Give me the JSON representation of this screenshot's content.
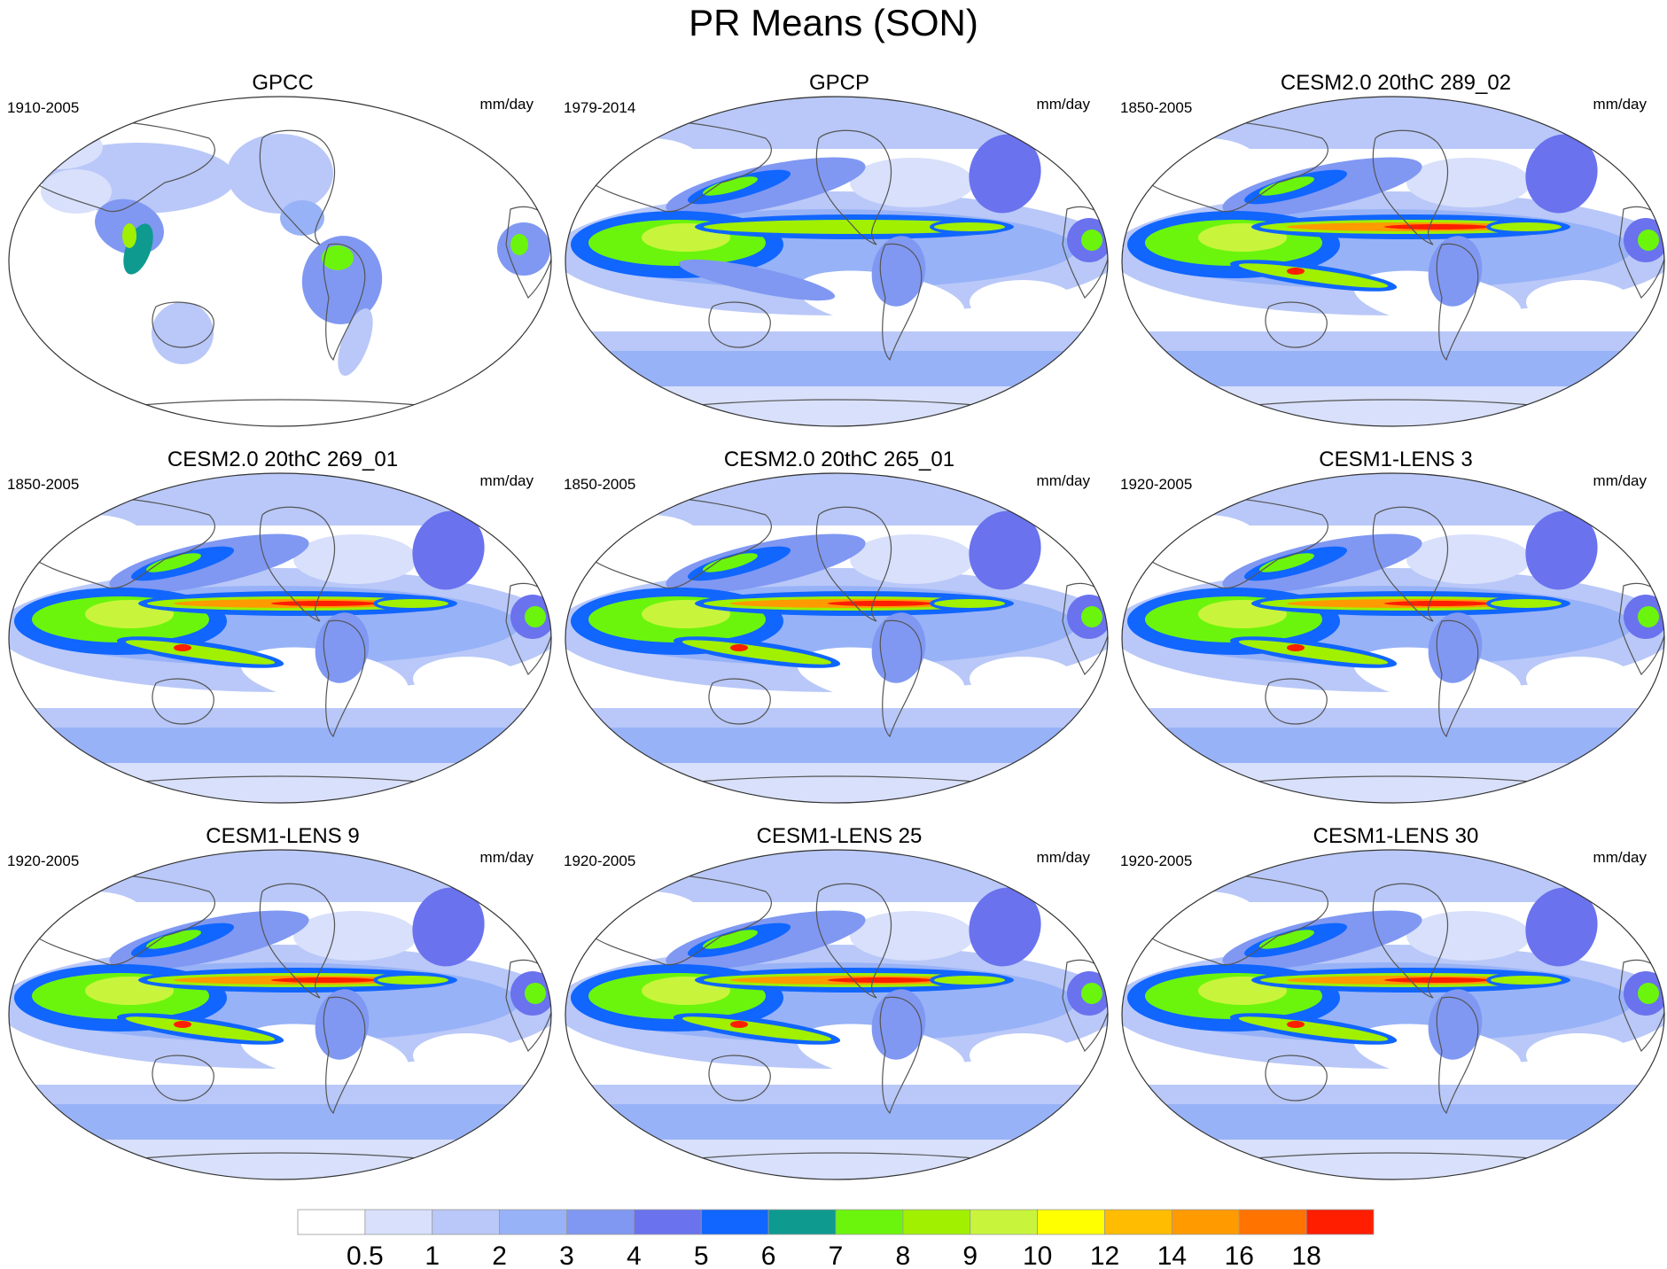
{
  "title": "PR Means (SON)",
  "units": "mm/day",
  "panels": [
    {
      "title": "GPCC",
      "period": "1910-2005",
      "kind": "obs_land"
    },
    {
      "title": "GPCP",
      "period": "1979-2014",
      "kind": "obs"
    },
    {
      "title": "CESM2.0 20thC 289_02",
      "period": "1850-2005",
      "kind": "model"
    },
    {
      "title": "CESM2.0 20thC 269_01",
      "period": "1850-2005",
      "kind": "model"
    },
    {
      "title": "CESM2.0 20thC 265_01",
      "period": "1850-2005",
      "kind": "model"
    },
    {
      "title": "CESM1-LENS 3",
      "period": "1920-2005",
      "kind": "model"
    },
    {
      "title": "CESM1-LENS 9",
      "period": "1920-2005",
      "kind": "model"
    },
    {
      "title": "CESM1-LENS 25",
      "period": "1920-2005",
      "kind": "model"
    },
    {
      "title": "CESM1-LENS 30",
      "period": "1920-2005",
      "kind": "model"
    }
  ],
  "colorbar": {
    "labels": [
      "0.5",
      "1",
      "2",
      "3",
      "4",
      "5",
      "6",
      "7",
      "8",
      "9",
      "10",
      "12",
      "14",
      "16",
      "18"
    ],
    "colors": [
      "#ffffff",
      "#d8e0fb",
      "#b9c8f8",
      "#98b2f7",
      "#8098f2",
      "#6a72ee",
      "#1066ff",
      "#0e9a8f",
      "#6cf50c",
      "#a0f000",
      "#c8f53c",
      "#ffff00",
      "#ffbc00",
      "#ff9a00",
      "#ff7300",
      "#ff1e00"
    ]
  }
}
